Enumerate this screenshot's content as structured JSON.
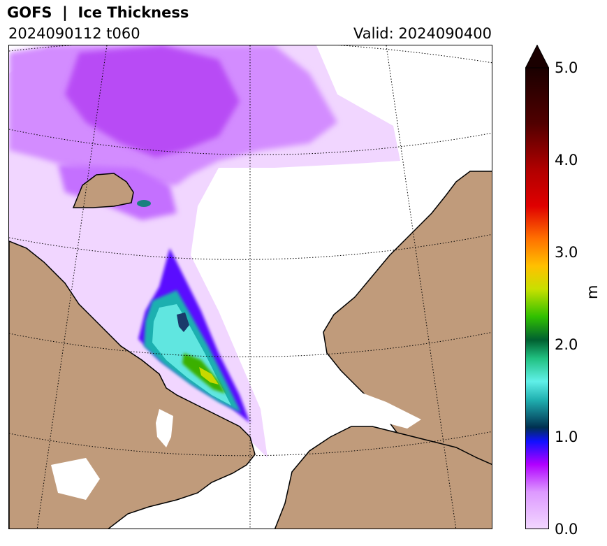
{
  "header": {
    "title": "GOFS  |  Ice Thickness",
    "init": "2024090112 t060",
    "valid": "Valid: 2024090400"
  },
  "colorbar": {
    "label": "m",
    "ticks": [
      "0.0",
      "1.0",
      "2.0",
      "3.0",
      "4.0",
      "5.0"
    ],
    "range": [
      0,
      5
    ],
    "extend": "max",
    "colors": {
      "low": "#f2d7ff",
      "purple": "#b000ff",
      "blue": "#1010ff",
      "dark_teal": "#005050",
      "cyan": "#50e8e8",
      "green": "#20b000",
      "yellow": "#e8e800",
      "orange": "#ff8000",
      "red": "#e00000",
      "dark_red": "#600000",
      "black": "#200000"
    }
  },
  "map": {
    "land_color": "#c09b7b",
    "ocean_color": "#ffffff",
    "gridlines": "dotted"
  }
}
